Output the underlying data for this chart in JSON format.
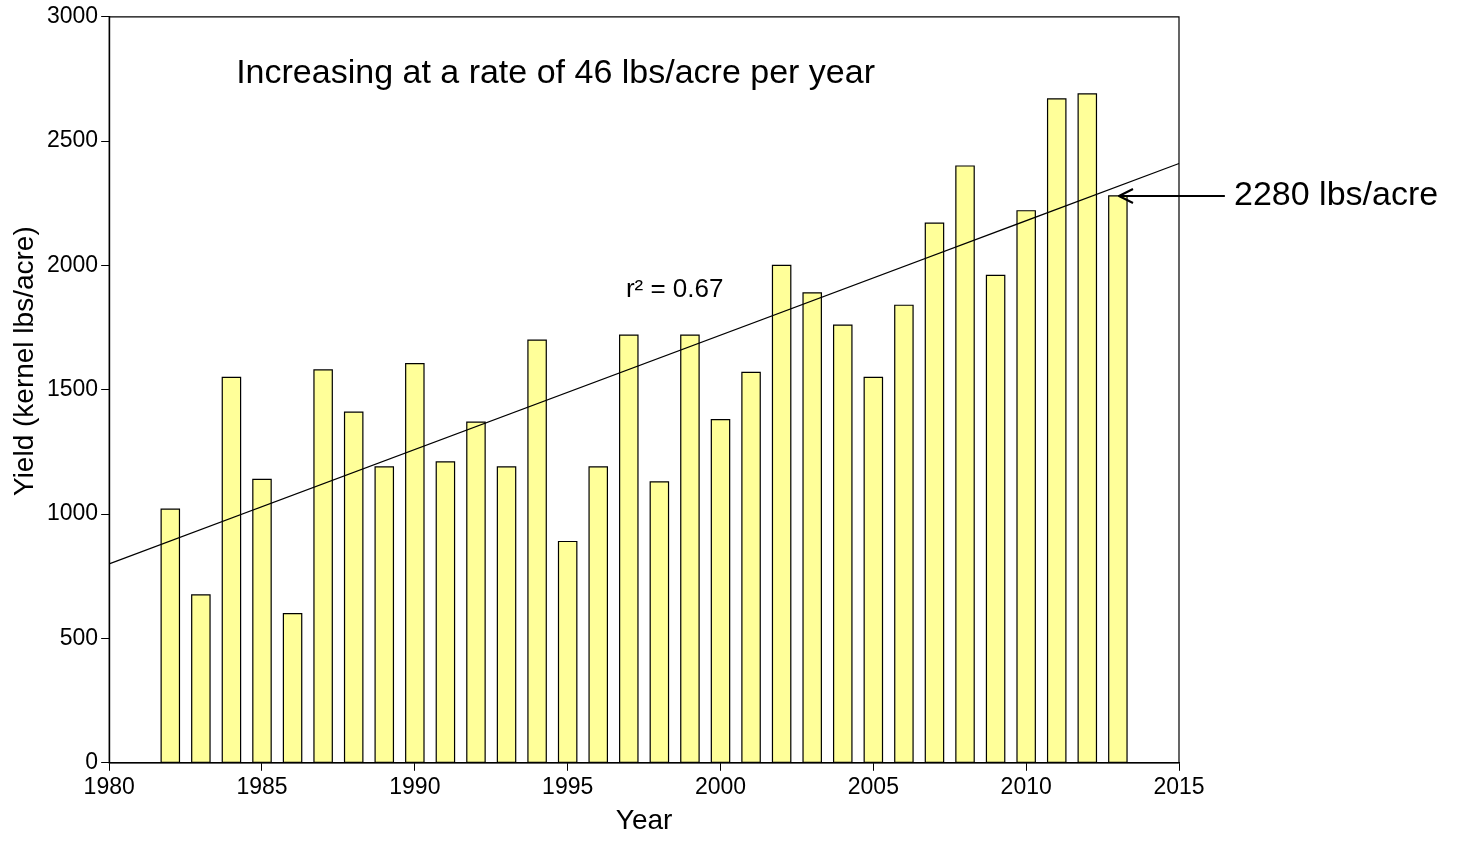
{
  "chart_data": {
    "type": "bar",
    "xlabel": "Year",
    "ylabel": "Yield (kernel lbs/acre)",
    "x": [
      1982,
      1983,
      1984,
      1985,
      1986,
      1987,
      1988,
      1989,
      1990,
      1991,
      1992,
      1993,
      1994,
      1995,
      1996,
      1997,
      1998,
      1999,
      2000,
      2001,
      2002,
      2003,
      2004,
      2005,
      2006,
      2007,
      2008,
      2009,
      2010,
      2011,
      2012,
      2013
    ],
    "series": [
      {
        "color": "#ffff99",
        "values": [
          1020,
          675,
          1550,
          1140,
          600,
          1580,
          1410,
          1190,
          1605,
          1210,
          1370,
          1190,
          1700,
          890,
          1190,
          1720,
          1130,
          1720,
          1380,
          1570,
          2000,
          1890,
          1760,
          1550,
          1840,
          2170,
          2400,
          1960,
          2220,
          2670,
          2690,
          2280
        ]
      },
      {
        "type": "line",
        "color": "#000000",
        "marker": "none",
        "x": [
          1980,
          2015
        ],
        "values": [
          800,
          2410
        ]
      }
    ],
    "xlim": [
      1980,
      2015
    ],
    "xticks": [
      1980,
      1985,
      1990,
      1995,
      2000,
      2005,
      2010,
      2015
    ],
    "ylim": [
      0,
      3000
    ],
    "yticks": [
      0,
      500,
      1000,
      1500,
      2000,
      2500,
      3000
    ],
    "grid": false,
    "legend": false,
    "annotations": [
      "Increasing at a rate of 46 lbs/acre per year",
      "r² = 0.67",
      "2280 lbs/acre"
    ]
  }
}
